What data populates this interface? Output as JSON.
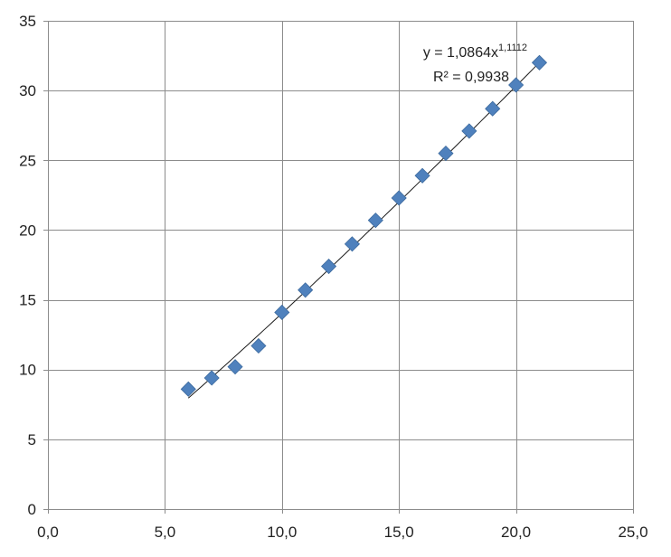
{
  "chart_data": {
    "type": "scatter",
    "title": "",
    "xlabel": "",
    "ylabel": "",
    "xlim": [
      0,
      25
    ],
    "ylim": [
      0,
      35
    ],
    "x_ticks": [
      0,
      5,
      10,
      15,
      20,
      25
    ],
    "x_tick_labels": [
      "0,0",
      "5,0",
      "10,0",
      "15,0",
      "20,0",
      "25,0"
    ],
    "y_ticks": [
      0,
      5,
      10,
      15,
      20,
      25,
      30,
      35
    ],
    "y_tick_labels": [
      "0",
      "5",
      "10",
      "15",
      "20",
      "25",
      "30",
      "35"
    ],
    "grid": true,
    "legend": "none",
    "marker": "diamond",
    "marker_color": "#4f81bd",
    "trendline_color": "#1a1a1a",
    "series": [
      {
        "x": [
          6,
          7,
          8,
          9,
          10,
          11,
          12,
          13,
          14,
          15,
          16,
          17,
          18,
          19,
          20,
          21
        ],
        "y": [
          8.6,
          9.4,
          10.2,
          11.7,
          14.1,
          15.7,
          17.4,
          19.0,
          20.7,
          22.3,
          23.9,
          25.5,
          27.1,
          28.7,
          30.4,
          32.0
        ]
      }
    ],
    "trendline": {
      "type": "power",
      "coefficient": 1.0864,
      "exponent": 1.1112,
      "x_range": [
        6,
        21
      ],
      "equation_base": "y = 1,0864x",
      "equation_exponent": "1,1112",
      "r_squared_label": "R² = 0,9938"
    }
  }
}
